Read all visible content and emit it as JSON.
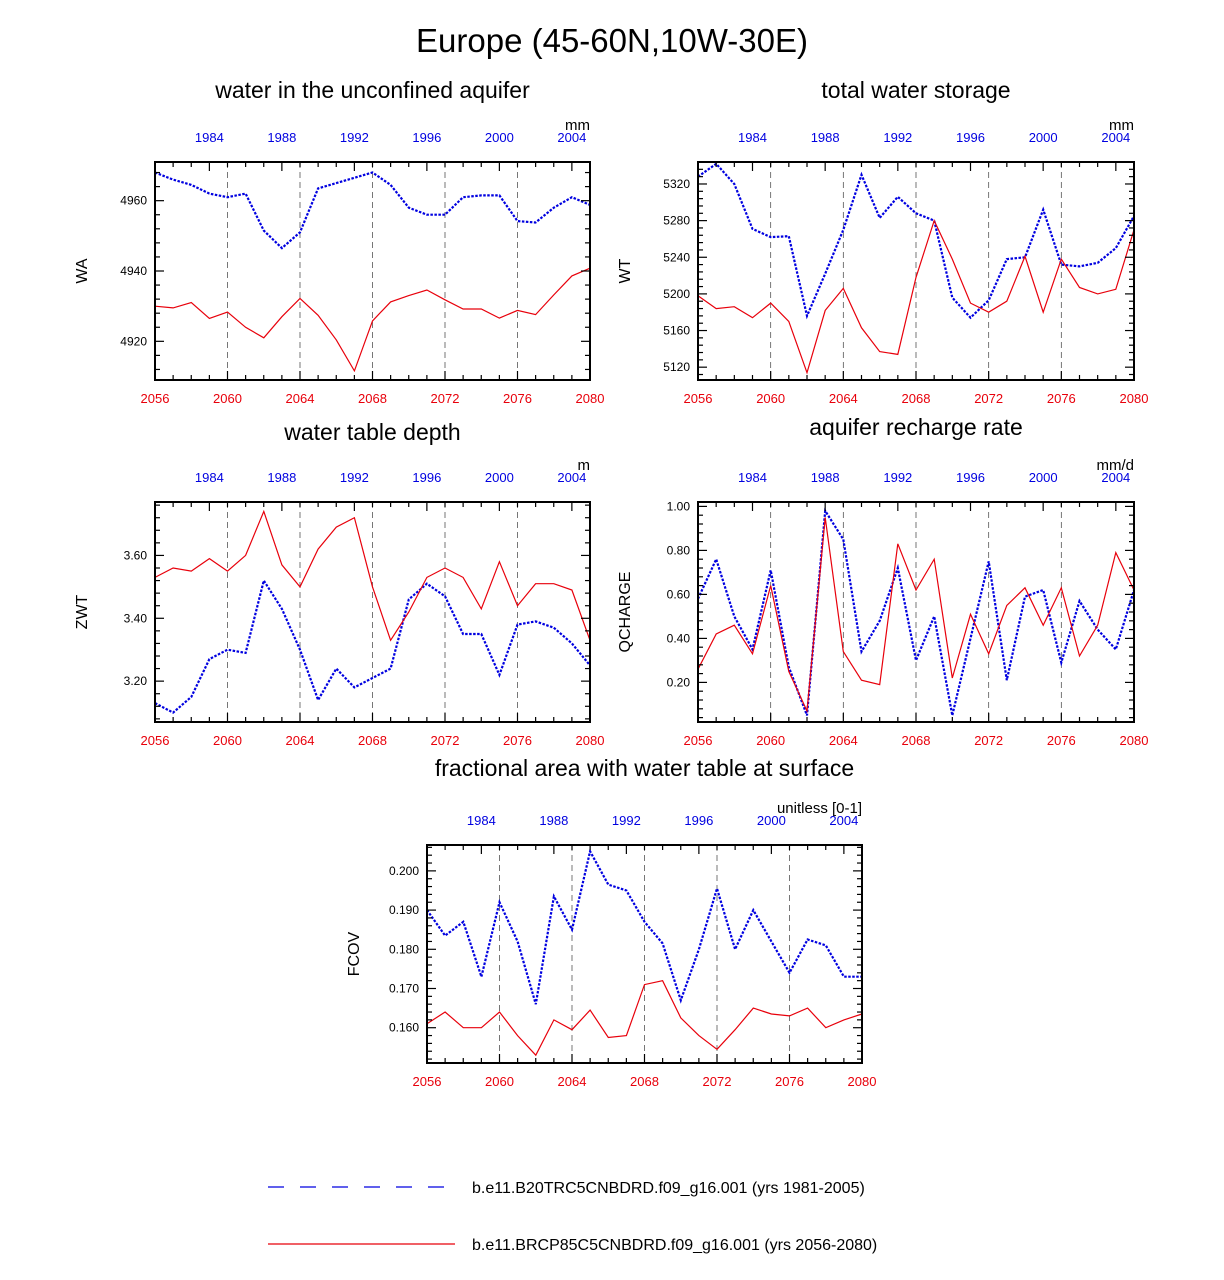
{
  "title": "Europe (45-60N,10W-30E)",
  "colors": {
    "series_a": "#0000e0",
    "series_b": "#e8000b",
    "axis": "#000000",
    "grid": "#555555"
  },
  "legend": {
    "entries": [
      {
        "label": "b.e11.B20TRC5CNBDRD.f09_g16.001 (yrs 1981-2005)",
        "color": "#0000e0",
        "style": "dashed"
      },
      {
        "label": "b.e11.BRCP85C5CNBDRD.f09_g16.001 (yrs 2056-2080)",
        "color": "#e8000b",
        "style": "solid"
      }
    ]
  },
  "chart_data": [
    {
      "type": "line",
      "id": "wa",
      "title": "water in the unconfined aquifer",
      "units": "mm",
      "ylabel": "WA",
      "x_bottom": {
        "range": [
          2056,
          2080
        ],
        "ticks": [
          "2056",
          "2060",
          "2064",
          "2068",
          "2072",
          "2076",
          "2080"
        ]
      },
      "x_top": {
        "range": [
          1981,
          2005
        ],
        "ticks": [
          "1984",
          "1988",
          "1992",
          "1996",
          "2000",
          "2004"
        ]
      },
      "ylim": [
        4909,
        4971
      ],
      "yticks": [
        4920,
        4940,
        4960
      ],
      "yticklabels": [
        "4920",
        "4940",
        "4960"
      ],
      "series": [
        {
          "name": "b.e11.B20TRC5CNBDRD.f09_g16.001 (yrs 1981-2005)",
          "axis": "top",
          "values": [
            4968,
            4966,
            4964.5,
            4962,
            4961,
            4962,
            4951.5,
            4946.5,
            4951,
            4963.5,
            4965,
            4966.5,
            4968,
            4964.5,
            4958,
            4956,
            4956,
            4961,
            4961.5,
            4961.5,
            4954.2,
            4953.8,
            4958,
            4961,
            4958.8
          ]
        },
        {
          "name": "b.e11.BRCP85C5CNBDRD.f09_g16.001 (yrs 2056-2080)",
          "axis": "bottom",
          "values": [
            4930,
            4929.5,
            4931,
            4926.5,
            4928.3,
            4924,
            4921,
            4927,
            4932.2,
            4927.4,
            4920.4,
            4911.6,
            4925.8,
            4931.2,
            4933,
            4934.6,
            4931.8,
            4929.2,
            4929.2,
            4926.6,
            4928.8,
            4927.6,
            4933.2,
            4938.6,
            4940.8
          ]
        }
      ]
    },
    {
      "type": "line",
      "id": "wt",
      "title": "total water storage",
      "units": "mm",
      "ylabel": "WT",
      "x_bottom": {
        "range": [
          2056,
          2080
        ],
        "ticks": [
          "2056",
          "2060",
          "2064",
          "2068",
          "2072",
          "2076",
          "2080"
        ]
      },
      "x_top": {
        "range": [
          1981,
          2005
        ],
        "ticks": [
          "1984",
          "1988",
          "1992",
          "1996",
          "2000",
          "2004"
        ]
      },
      "ylim": [
        5106,
        5344
      ],
      "yticks": [
        5120,
        5160,
        5200,
        5240,
        5280,
        5320
      ],
      "yticklabels": [
        "5120",
        "5160",
        "5200",
        "5240",
        "5280",
        "5320"
      ],
      "series": [
        {
          "name": "b.e11.B20TRC5CNBDRD.f09_g16.001 (yrs 1981-2005)",
          "axis": "top",
          "values": [
            5328,
            5342,
            5320,
            5271,
            5262,
            5263,
            5176,
            5222,
            5270,
            5330,
            5283,
            5306,
            5288,
            5280,
            5196,
            5174,
            5193,
            5238,
            5240,
            5292,
            5232,
            5230,
            5234,
            5250,
            5285
          ]
        },
        {
          "name": "b.e11.BRCP85C5CNBDRD.f09_g16.001 (yrs 2056-2080)",
          "axis": "bottom",
          "values": [
            5198,
            5184,
            5186,
            5174,
            5190,
            5170,
            5114,
            5182,
            5206,
            5163,
            5137,
            5134,
            5218,
            5280,
            5238,
            5190,
            5180,
            5192,
            5241,
            5180,
            5238,
            5207,
            5200,
            5205,
            5270
          ]
        }
      ]
    },
    {
      "type": "line",
      "id": "zwt",
      "title": "water table depth",
      "units": "m",
      "ylabel": "ZWT",
      "x_bottom": {
        "range": [
          2056,
          2080
        ],
        "ticks": [
          "2056",
          "2060",
          "2064",
          "2068",
          "2072",
          "2076",
          "2080"
        ]
      },
      "x_top": {
        "range": [
          1981,
          2005
        ],
        "ticks": [
          "1984",
          "1988",
          "1992",
          "1996",
          "2000",
          "2004"
        ]
      },
      "ylim": [
        3.07,
        3.77
      ],
      "yticks": [
        3.2,
        3.4,
        3.6
      ],
      "yticklabels": [
        "3.20",
        "3.40",
        "3.60"
      ],
      "series": [
        {
          "name": "b.e11.B20TRC5CNBDRD.f09_g16.001 (yrs 1981-2005)",
          "axis": "top",
          "values": [
            3.13,
            3.1,
            3.15,
            3.27,
            3.3,
            3.29,
            3.52,
            3.43,
            3.3,
            3.14,
            3.24,
            3.18,
            3.21,
            3.24,
            3.46,
            3.51,
            3.47,
            3.35,
            3.35,
            3.22,
            3.38,
            3.39,
            3.37,
            3.32,
            3.25
          ]
        },
        {
          "name": "b.e11.BRCP85C5CNBDRD.f09_g16.001 (yrs 2056-2080)",
          "axis": "bottom",
          "values": [
            3.53,
            3.56,
            3.55,
            3.59,
            3.55,
            3.6,
            3.74,
            3.57,
            3.5,
            3.62,
            3.69,
            3.72,
            3.5,
            3.33,
            3.42,
            3.53,
            3.56,
            3.53,
            3.43,
            3.58,
            3.44,
            3.51,
            3.51,
            3.49,
            3.33
          ]
        }
      ]
    },
    {
      "type": "line",
      "id": "qcharge",
      "title": "aquifer recharge rate",
      "units": "mm/d",
      "ylabel": "QCHARGE",
      "x_bottom": {
        "range": [
          2056,
          2080
        ],
        "ticks": [
          "2056",
          "2060",
          "2064",
          "2068",
          "2072",
          "2076",
          "2080"
        ]
      },
      "x_top": {
        "range": [
          1981,
          2005
        ],
        "ticks": [
          "1984",
          "1988",
          "1992",
          "1996",
          "2000",
          "2004"
        ]
      },
      "ylim": [
        0.02,
        1.02
      ],
      "yticks": [
        0.2,
        0.4,
        0.6,
        0.8,
        1.0
      ],
      "yticklabels": [
        "0.20",
        "0.40",
        "0.60",
        "0.80",
        "1.00"
      ],
      "series": [
        {
          "name": "b.e11.B20TRC5CNBDRD.f09_g16.001 (yrs 1981-2005)",
          "axis": "top",
          "values": [
            0.58,
            0.76,
            0.5,
            0.35,
            0.71,
            0.27,
            0.05,
            0.98,
            0.85,
            0.34,
            0.48,
            0.72,
            0.3,
            0.5,
            0.05,
            0.4,
            0.75,
            0.21,
            0.59,
            0.62,
            0.29,
            0.57,
            0.44,
            0.35,
            0.62
          ]
        },
        {
          "name": "b.e11.BRCP85C5CNBDRD.f09_g16.001 (yrs 2056-2080)",
          "axis": "bottom",
          "values": [
            0.26,
            0.42,
            0.46,
            0.33,
            0.64,
            0.25,
            0.07,
            0.95,
            0.34,
            0.21,
            0.19,
            0.83,
            0.62,
            0.76,
            0.22,
            0.51,
            0.33,
            0.55,
            0.63,
            0.46,
            0.63,
            0.32,
            0.46,
            0.79,
            0.62
          ]
        }
      ]
    },
    {
      "type": "line",
      "id": "fcov",
      "title": "fractional area with water table at surface",
      "units": "unitless [0-1]",
      "ylabel": "FCOV",
      "x_bottom": {
        "range": [
          2056,
          2080
        ],
        "ticks": [
          "2056",
          "2060",
          "2064",
          "2068",
          "2072",
          "2076",
          "2080"
        ]
      },
      "x_top": {
        "range": [
          1981,
          2005
        ],
        "ticks": [
          "1984",
          "1988",
          "1992",
          "1996",
          "2000",
          "2004"
        ]
      },
      "ylim": [
        0.151,
        0.2066
      ],
      "yticks": [
        0.16,
        0.17,
        0.18,
        0.19,
        0.2
      ],
      "yticklabels": [
        "0.160",
        "0.170",
        "0.180",
        "0.190",
        "0.200"
      ],
      "series": [
        {
          "name": "b.e11.B20TRC5CNBDRD.f09_g16.001 (yrs 1981-2005)",
          "axis": "top",
          "values": [
            0.19,
            0.1835,
            0.187,
            0.173,
            0.192,
            0.182,
            0.166,
            0.1935,
            0.185,
            0.205,
            0.1965,
            0.195,
            0.187,
            0.1815,
            0.167,
            0.18,
            0.1955,
            0.18,
            0.19,
            0.182,
            0.174,
            0.1825,
            0.181,
            0.173,
            0.173
          ]
        },
        {
          "name": "b.e11.BRCP85C5CNBDRD.f09_g16.001 (yrs 2056-2080)",
          "axis": "bottom",
          "values": [
            0.161,
            0.164,
            0.16,
            0.16,
            0.164,
            0.158,
            0.153,
            0.162,
            0.1595,
            0.1645,
            0.1575,
            0.158,
            0.171,
            0.172,
            0.1625,
            0.158,
            0.1545,
            0.1595,
            0.165,
            0.1635,
            0.163,
            0.165,
            0.16,
            0.162,
            0.1635
          ]
        }
      ]
    }
  ]
}
